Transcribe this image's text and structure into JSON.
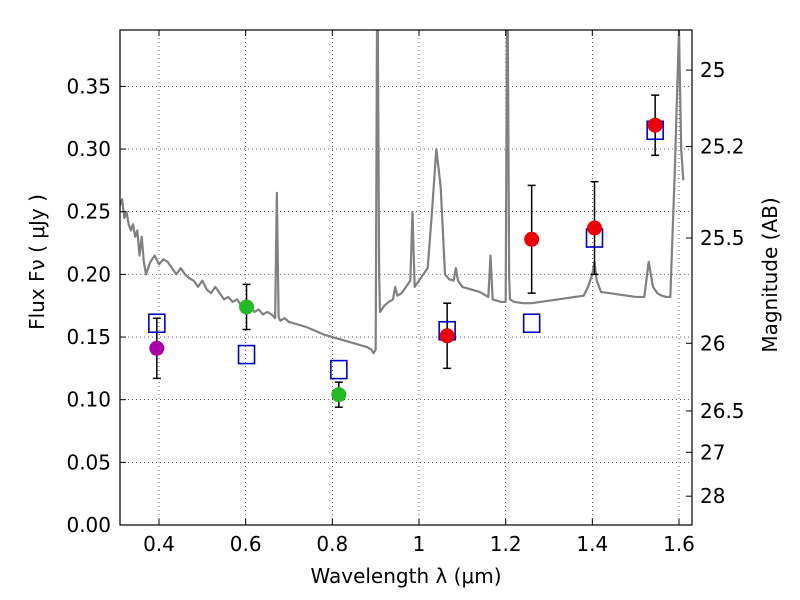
{
  "chart_data": {
    "type": "scatter",
    "xlabel": "Wavelength  λ (μm)",
    "ylabel_left": "Flux  Fν  ( μJy )",
    "ylabel_right": "Magnitude (AB)",
    "xlim": [
      0.31,
      1.63
    ],
    "ylim": [
      0.0,
      0.395
    ],
    "grid": true,
    "x_ticks": [
      {
        "value": 0.4,
        "label": "0.4"
      },
      {
        "value": 0.6,
        "label": "0.6"
      },
      {
        "value": 0.8,
        "label": "0.8"
      },
      {
        "value": 1.0,
        "label": "1"
      },
      {
        "value": 1.2,
        "label": "1.2"
      },
      {
        "value": 1.4,
        "label": "1.4"
      },
      {
        "value": 1.6,
        "label": "1.6"
      }
    ],
    "y_ticks": [
      {
        "value": 0.0,
        "label": "0.00"
      },
      {
        "value": 0.05,
        "label": "0.05"
      },
      {
        "value": 0.1,
        "label": "0.10"
      },
      {
        "value": 0.15,
        "label": "0.15"
      },
      {
        "value": 0.2,
        "label": "0.20"
      },
      {
        "value": 0.25,
        "label": "0.25"
      },
      {
        "value": 0.3,
        "label": "0.30"
      },
      {
        "value": 0.35,
        "label": "0.35"
      }
    ],
    "right_ticks": [
      {
        "flux": 0.363,
        "label": "25"
      },
      {
        "flux": 0.302,
        "label": "25.2"
      },
      {
        "flux": 0.229,
        "label": "25.5"
      },
      {
        "flux": 0.145,
        "label": "26"
      },
      {
        "flux": 0.091,
        "label": "26.5"
      },
      {
        "flux": 0.058,
        "label": "27"
      },
      {
        "flux": 0.023,
        "label": "28"
      }
    ],
    "model_spectrum": {
      "color": "#808080",
      "x": [
        0.31,
        0.315,
        0.32,
        0.325,
        0.33,
        0.335,
        0.34,
        0.345,
        0.35,
        0.355,
        0.36,
        0.365,
        0.37,
        0.38,
        0.39,
        0.4,
        0.41,
        0.42,
        0.43,
        0.44,
        0.45,
        0.46,
        0.47,
        0.48,
        0.49,
        0.5,
        0.51,
        0.52,
        0.53,
        0.54,
        0.55,
        0.56,
        0.57,
        0.58,
        0.59,
        0.6,
        0.61,
        0.62,
        0.63,
        0.64,
        0.65,
        0.66,
        0.668,
        0.672,
        0.676,
        0.68,
        0.69,
        0.7,
        0.72,
        0.74,
        0.76,
        0.78,
        0.8,
        0.82,
        0.84,
        0.86,
        0.88,
        0.89,
        0.895,
        0.9,
        0.903,
        0.905,
        0.908,
        0.91,
        0.92,
        0.93,
        0.94,
        0.945,
        0.95,
        0.96,
        0.97,
        0.98,
        0.985,
        0.99,
        1.0,
        1.01,
        1.02,
        1.03,
        1.04,
        1.05,
        1.06,
        1.07,
        1.08,
        1.085,
        1.09,
        1.1,
        1.12,
        1.14,
        1.16,
        1.165,
        1.17,
        1.18,
        1.19,
        1.2,
        1.203,
        1.205,
        1.208,
        1.21,
        1.22,
        1.24,
        1.26,
        1.28,
        1.3,
        1.32,
        1.34,
        1.36,
        1.38,
        1.39,
        1.4,
        1.405,
        1.41,
        1.42,
        1.44,
        1.46,
        1.48,
        1.5,
        1.52,
        1.53,
        1.535,
        1.54,
        1.55,
        1.56,
        1.57,
        1.58,
        1.59,
        1.6,
        1.605,
        1.61
      ],
      "y": [
        0.255,
        0.26,
        0.245,
        0.25,
        0.24,
        0.235,
        0.24,
        0.23,
        0.235,
        0.215,
        0.23,
        0.21,
        0.2,
        0.21,
        0.215,
        0.208,
        0.212,
        0.21,
        0.205,
        0.2,
        0.205,
        0.2,
        0.197,
        0.195,
        0.19,
        0.195,
        0.188,
        0.185,
        0.19,
        0.185,
        0.18,
        0.182,
        0.178,
        0.18,
        0.175,
        0.178,
        0.175,
        0.17,
        0.172,
        0.168,
        0.17,
        0.168,
        0.165,
        0.265,
        0.166,
        0.163,
        0.165,
        0.162,
        0.16,
        0.158,
        0.155,
        0.152,
        0.15,
        0.148,
        0.146,
        0.144,
        0.142,
        0.14,
        0.137,
        0.14,
        0.395,
        0.395,
        0.2,
        0.17,
        0.175,
        0.178,
        0.18,
        0.19,
        0.183,
        0.185,
        0.19,
        0.195,
        0.25,
        0.19,
        0.195,
        0.2,
        0.205,
        0.25,
        0.3,
        0.27,
        0.2,
        0.196,
        0.195,
        0.205,
        0.195,
        0.19,
        0.188,
        0.186,
        0.182,
        0.215,
        0.18,
        0.179,
        0.178,
        0.178,
        0.395,
        0.395,
        0.2,
        0.18,
        0.178,
        0.177,
        0.177,
        0.178,
        0.179,
        0.18,
        0.181,
        0.182,
        0.183,
        0.19,
        0.2,
        0.21,
        0.195,
        0.186,
        0.185,
        0.184,
        0.183,
        0.182,
        0.182,
        0.21,
        0.2,
        0.19,
        0.185,
        0.183,
        0.182,
        0.182,
        0.28,
        0.395,
        0.3,
        0.275
      ]
    },
    "photometry": [
      {
        "x": 0.395,
        "y": 0.141,
        "err": 0.024,
        "color": "#aa00aa"
      },
      {
        "x": 0.602,
        "y": 0.174,
        "err": 0.018,
        "color": "#22bb22"
      },
      {
        "x": 0.815,
        "y": 0.104,
        "err": 0.01,
        "color": "#22bb22"
      },
      {
        "x": 1.065,
        "y": 0.151,
        "err": 0.026,
        "color": "#ee0000"
      },
      {
        "x": 1.26,
        "y": 0.228,
        "err": 0.043,
        "color": "#ee0000"
      },
      {
        "x": 1.405,
        "y": 0.237,
        "err": 0.037,
        "color": "#ee0000"
      },
      {
        "x": 1.545,
        "y": 0.319,
        "err": 0.024,
        "color": "#ee0000"
      }
    ],
    "model_photometry": {
      "color": "#0000cc",
      "points": [
        {
          "x": 0.395,
          "y": 0.161
        },
        {
          "x": 0.602,
          "y": 0.136
        },
        {
          "x": 0.815,
          "y": 0.124
        },
        {
          "x": 1.065,
          "y": 0.155
        },
        {
          "x": 1.26,
          "y": 0.161
        },
        {
          "x": 1.405,
          "y": 0.229
        },
        {
          "x": 1.545,
          "y": 0.315
        }
      ]
    }
  }
}
